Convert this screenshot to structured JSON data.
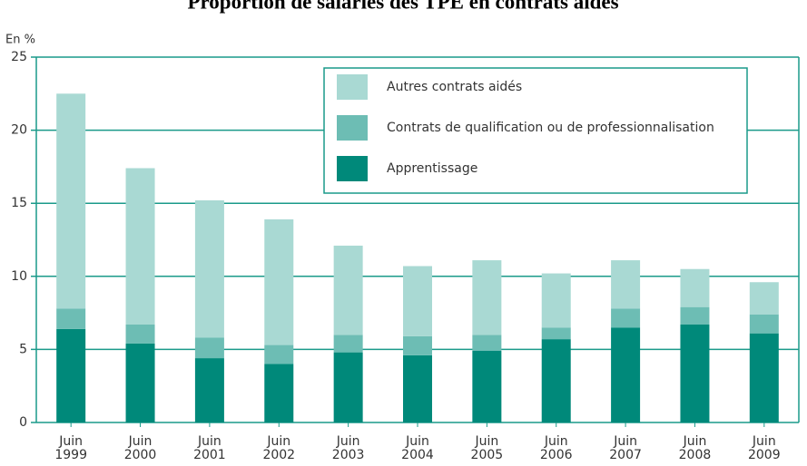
{
  "chart_data": {
    "type": "stacked-bar",
    "title": "Proportion de salariés des TPE en contrats aidés",
    "y_label": "En %",
    "categories": [
      "Juin 1999",
      "Juin 2000",
      "Juin 2001",
      "Juin 2002",
      "Juin 2003",
      "Juin 2004",
      "Juin 2005",
      "Juin 2006",
      "Juin 2007",
      "Juin 2008",
      "Juin 2009"
    ],
    "series": [
      {
        "name": "Apprentissage",
        "color": "#00897a",
        "values": [
          6.4,
          5.4,
          4.4,
          4.0,
          4.8,
          4.6,
          4.9,
          5.7,
          6.5,
          6.7,
          6.1
        ]
      },
      {
        "name": "Contrats de qualification ou de professionnalisation",
        "color": "#6dbdb4",
        "values": [
          1.4,
          1.3,
          1.4,
          1.3,
          1.2,
          1.3,
          1.1,
          0.8,
          1.3,
          1.2,
          1.3
        ]
      },
      {
        "name": "Autres contrats aidés",
        "color": "#a9d9d3",
        "values": [
          14.7,
          10.7,
          9.4,
          8.6,
          6.1,
          4.8,
          5.1,
          3.7,
          3.3,
          2.6,
          2.2
        ]
      }
    ],
    "ylim": [
      0,
      25
    ],
    "yticks": [
      0,
      5,
      10,
      15,
      20,
      25
    ],
    "grid": true
  }
}
